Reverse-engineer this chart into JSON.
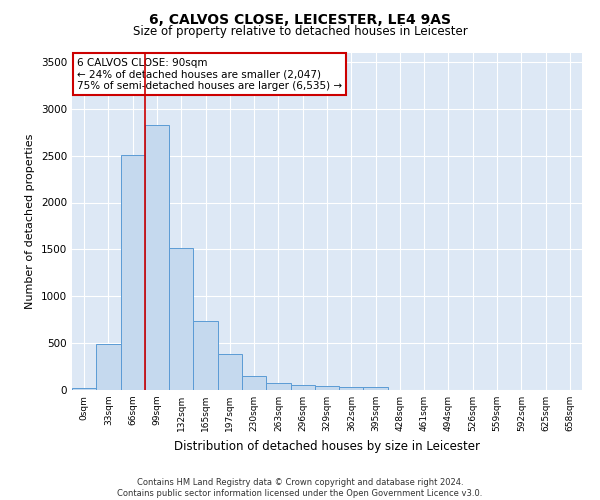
{
  "title": "6, CALVOS CLOSE, LEICESTER, LE4 9AS",
  "subtitle": "Size of property relative to detached houses in Leicester",
  "xlabel": "Distribution of detached houses by size in Leicester",
  "ylabel": "Number of detached properties",
  "bar_color": "#c5d9ee",
  "bar_edge_color": "#5b9bd5",
  "annotation_box_color": "#cc0000",
  "vline_color": "#cc0000",
  "bg_color": "#dde8f5",
  "grid_color": "#ffffff",
  "categories": [
    "0sqm",
    "33sqm",
    "66sqm",
    "99sqm",
    "132sqm",
    "165sqm",
    "197sqm",
    "230sqm",
    "263sqm",
    "296sqm",
    "329sqm",
    "362sqm",
    "395sqm",
    "428sqm",
    "461sqm",
    "494sqm",
    "526sqm",
    "559sqm",
    "592sqm",
    "625sqm",
    "658sqm"
  ],
  "values": [
    25,
    490,
    2510,
    2830,
    1510,
    740,
    380,
    150,
    75,
    55,
    45,
    30,
    30,
    0,
    0,
    0,
    0,
    0,
    0,
    0,
    0
  ],
  "vline_x_index": 3,
  "annotation_line1": "6 CALVOS CLOSE: 90sqm",
  "annotation_line2": "← 24% of detached houses are smaller (2,047)",
  "annotation_line3": "75% of semi-detached houses are larger (6,535) →",
  "footer_line1": "Contains HM Land Registry data © Crown copyright and database right 2024.",
  "footer_line2": "Contains public sector information licensed under the Open Government Licence v3.0.",
  "ylim": [
    0,
    3600
  ],
  "yticks": [
    0,
    500,
    1000,
    1500,
    2000,
    2500,
    3000,
    3500
  ]
}
